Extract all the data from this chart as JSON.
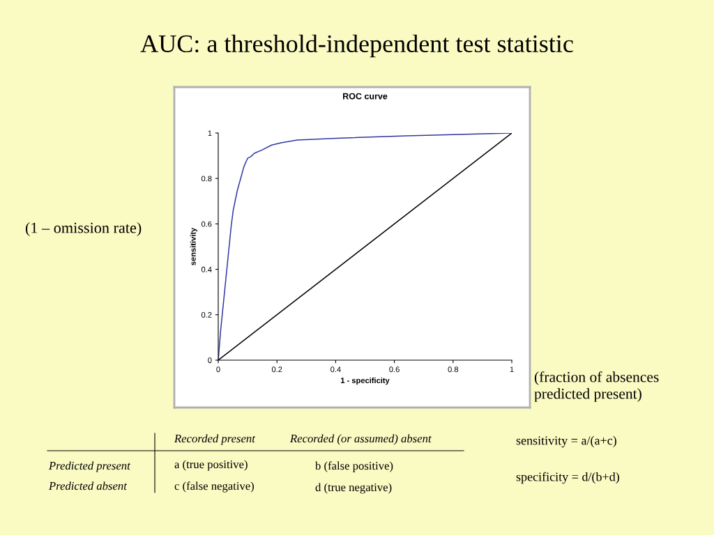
{
  "chart_data": {
    "type": "line",
    "title": "ROC curve",
    "xlabel": "1 - specificity",
    "ylabel": "sensitivity",
    "xlim": [
      0,
      1
    ],
    "ylim": [
      0,
      1
    ],
    "xticks": [
      0,
      0.2,
      0.4,
      0.6,
      0.8,
      1
    ],
    "yticks": [
      0,
      0.2,
      0.4,
      0.6,
      0.8,
      1
    ],
    "grid": false,
    "marker": "none",
    "line_style": "solid",
    "series": [
      {
        "color": "#3038a0",
        "x": [
          0,
          0.008,
          0.044,
          0.051,
          0.065,
          0.087,
          0.095,
          0.101,
          0.111,
          0.123,
          0.15,
          0.182,
          0.214,
          0.269,
          0.404,
          0.641,
          1
        ],
        "values": [
          0,
          0.128,
          0.589,
          0.66,
          0.747,
          0.85,
          0.875,
          0.89,
          0.896,
          0.911,
          0.926,
          0.947,
          0.957,
          0.969,
          0.977,
          0.988,
          1
        ]
      },
      {
        "color": "#000000",
        "x": [
          0,
          1
        ],
        "values": [
          0,
          1
        ]
      }
    ],
    "annotations": [
      "AUC: a threshold-independent test statistic",
      "(1 – omission rate)",
      "(fraction of absences predicted present)",
      "Recorded present",
      "Recorded (or assumed) absent",
      "Predicted present",
      "Predicted absent",
      "a (true positive)",
      "b (false positive)",
      "c (false negative)",
      "d (true negative)",
      "sensitivity = a/(a+c)",
      "specificity = d/(b+d)"
    ]
  }
}
